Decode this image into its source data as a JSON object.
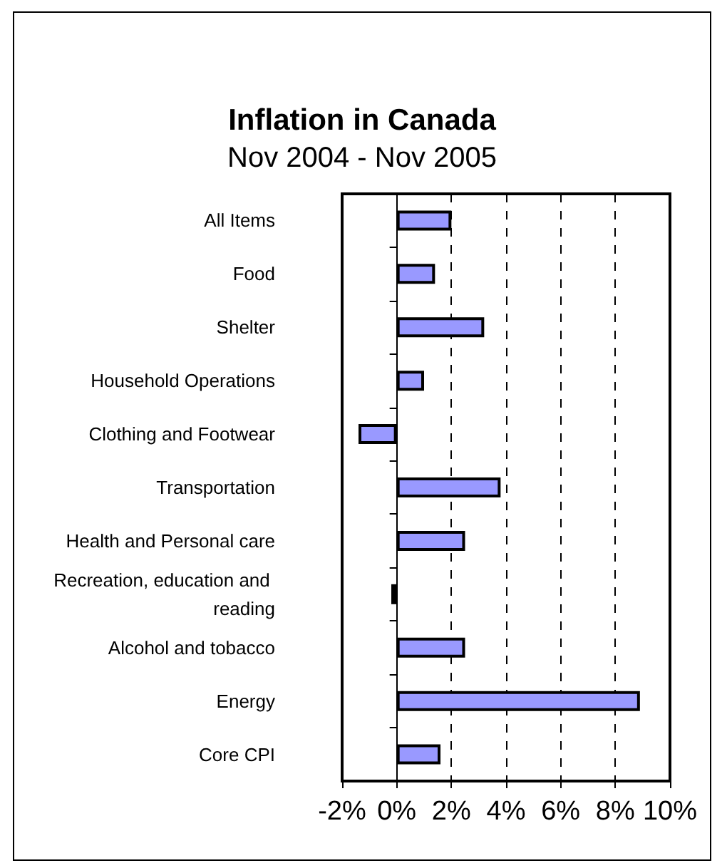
{
  "chart_data": {
    "type": "bar",
    "orientation": "horizontal",
    "title": "Inflation in Canada",
    "subtitle": "Nov 2004 - Nov 2005",
    "categories": [
      "All Items",
      "Food",
      "Shelter",
      "Household Operations",
      "Clothing and Footwear",
      "Transportation",
      "Health and Personal care",
      "Recreation, education and reading",
      "Alcohol and tobacco",
      "Energy",
      "Core CPI"
    ],
    "values": [
      2.0,
      1.4,
      3.2,
      1.0,
      -1.4,
      3.8,
      2.5,
      -0.2,
      2.5,
      8.9,
      1.6
    ],
    "color": "#9999ff",
    "xlim": [
      -2,
      10
    ],
    "xticks": [
      {
        "value": -2,
        "label": "-2%"
      },
      {
        "value": 0,
        "label": "0%"
      },
      {
        "value": 2,
        "label": "2%"
      },
      {
        "value": 4,
        "label": "4%"
      },
      {
        "value": 6,
        "label": "6%"
      },
      {
        "value": 8,
        "label": "8%"
      },
      {
        "value": 10,
        "label": "10%"
      }
    ],
    "grid": "x"
  }
}
